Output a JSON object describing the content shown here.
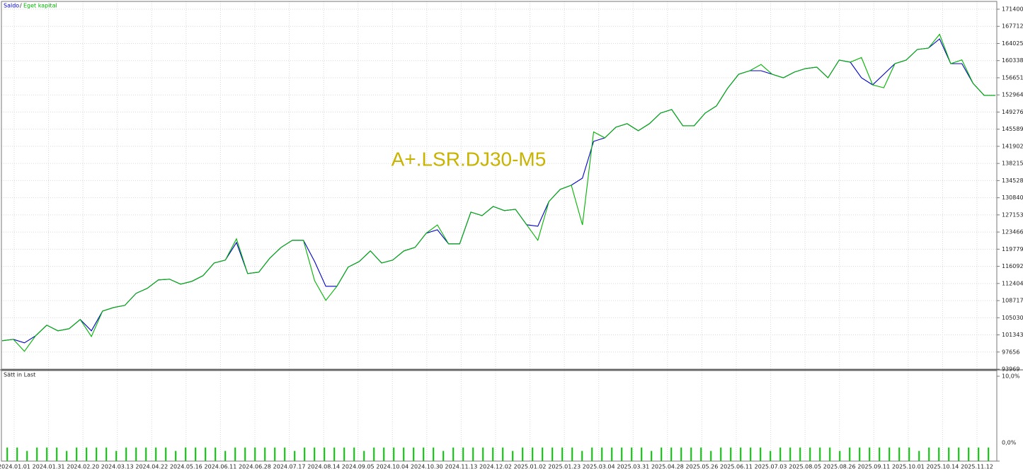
{
  "chart_data": [
    {
      "type": "line",
      "annotation": "A+.LSR.DJ30-M5",
      "legend_separator": "/",
      "series": [
        {
          "name": "Saldo",
          "color": "#0000c8",
          "values": [
            100090,
            100390,
            99630,
            101150,
            103430,
            102220,
            102670,
            104650,
            102220,
            106480,
            107240,
            107690,
            110280,
            111340,
            113170,
            113320,
            112250,
            112860,
            114080,
            116810,
            117420,
            121220,
            114530,
            114840,
            117880,
            120160,
            121680,
            121680,
            117120,
            111800,
            111800,
            115900,
            117120,
            119400,
            116810,
            117420,
            119400,
            120160,
            123200,
            123960,
            120920,
            120920,
            127760,
            127000,
            128980,
            128070,
            128370,
            125030,
            124720,
            130040,
            132630,
            133540,
            135060,
            142970,
            143730,
            146010,
            146770,
            145250,
            146770,
            149050,
            149810,
            146310,
            146310,
            149050,
            150570,
            154370,
            157410,
            158170,
            158170,
            157410,
            156650,
            157870,
            158630,
            158930,
            156650,
            160450,
            160000,
            156650,
            155130,
            157410,
            159690,
            160450,
            162730,
            163040,
            165010,
            159690,
            159690,
            155440,
            152850,
            152850
          ]
        },
        {
          "name": "Eget kapital",
          "color": "#00b400",
          "values": [
            100090,
            100390,
            97810,
            101150,
            103430,
            102220,
            102670,
            104650,
            101000,
            106480,
            107240,
            107690,
            110280,
            111340,
            113170,
            113320,
            112250,
            112860,
            114080,
            116810,
            117420,
            122000,
            114530,
            114840,
            117880,
            120160,
            121680,
            121680,
            113000,
            108750,
            111800,
            115900,
            117120,
            119400,
            116810,
            117420,
            119400,
            120160,
            123200,
            125000,
            120920,
            120920,
            127760,
            127000,
            128980,
            128070,
            128370,
            125030,
            121680,
            130040,
            132630,
            133540,
            125000,
            145000,
            143730,
            146010,
            146770,
            145250,
            146770,
            149050,
            149810,
            146310,
            146310,
            149050,
            150570,
            154370,
            157410,
            158170,
            159500,
            157410,
            156650,
            157870,
            158630,
            158930,
            156650,
            160450,
            160000,
            161000,
            155130,
            154500,
            159690,
            160450,
            162730,
            163040,
            166000,
            159690,
            160500,
            155440,
            152850,
            152850
          ]
        }
      ],
      "ylim": [
        93969,
        171400
      ],
      "yticks": [
        171400,
        167712,
        164025,
        160338,
        156651,
        152964,
        149276,
        145589,
        141902,
        138215,
        134528,
        130840,
        127153,
        123466,
        119779,
        116092,
        112404,
        108717,
        105030,
        101343,
        97656,
        93969
      ],
      "grid": true
    },
    {
      "type": "bar",
      "title": "Sätt in Last",
      "color": "#00c800",
      "values": [
        1.6,
        1.6,
        1.2,
        1.6,
        1.6,
        1.6,
        1.2,
        1.6,
        1.6,
        1.6,
        1.6,
        1.2,
        1.6,
        1.6,
        1.6,
        1.6,
        1.6,
        1.2,
        1.6,
        1.6,
        1.6,
        1.6,
        1.2,
        1.6,
        1.6,
        1.6,
        1.6,
        1.6,
        1.6,
        1.2,
        1.6,
        1.6,
        1.6,
        1.6,
        1.6,
        1.6,
        1.2,
        1.6,
        1.6,
        1.6,
        1.6,
        1.6,
        1.6,
        1.6,
        1.2,
        1.6,
        1.6,
        1.6,
        1.6,
        1.6,
        1.6,
        1.2,
        1.6,
        1.6,
        1.6,
        1.6,
        1.6,
        1.6,
        1.2,
        1.6,
        1.6,
        1.6,
        1.6,
        1.6,
        1.6,
        1.2,
        1.6,
        1.6,
        1.6,
        1.6,
        1.6,
        1.2,
        1.6,
        1.6,
        1.6,
        1.6,
        1.6,
        1.2,
        1.6,
        1.6,
        1.6,
        1.6,
        1.6,
        1.6,
        1.2,
        1.6,
        1.6,
        1.6,
        1.6,
        1.6,
        1.6,
        1.6,
        1.2,
        1.6,
        1.6,
        1.6,
        1.6,
        1.6,
        1.6,
        1.6
      ],
      "ylim": [
        0,
        10
      ],
      "yticks": [
        {
          "value": 10,
          "label": "10,0%"
        },
        {
          "value": 0,
          "label": "0,0%"
        }
      ],
      "xtick_labels": [
        "2024.01.01",
        "2024.01.31",
        "2024.02.20",
        "2024.03.13",
        "2024.04.22",
        "2024.05.16",
        "2024.06.11",
        "2024.06.28",
        "2024.07.17",
        "2024.08.14",
        "2024.09.05",
        "2024.10.04",
        "2024.10.30",
        "2024.11.13",
        "2024.12.02",
        "2025.01.02",
        "2025.01.23",
        "2025.03.04",
        "2025.03.31",
        "2025.04.28",
        "2025.05.26",
        "2025.06.11",
        "2025.07.03",
        "2025.08.05",
        "2025.08.26",
        "2025.09.11",
        "2025.10.01",
        "2025.10.14",
        "2025.11.12"
      ],
      "grid": true
    }
  ]
}
